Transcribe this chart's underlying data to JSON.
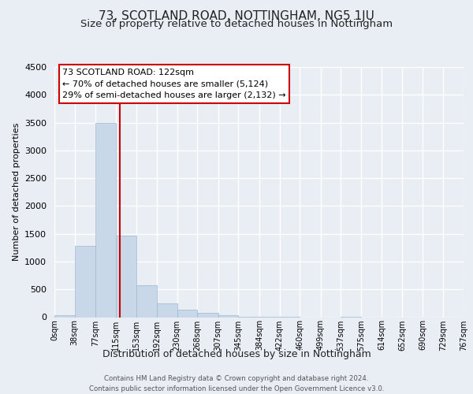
{
  "title": "73, SCOTLAND ROAD, NOTTINGHAM, NG5 1JU",
  "subtitle": "Size of property relative to detached houses in Nottingham",
  "xlabel": "Distribution of detached houses by size in Nottingham",
  "ylabel": "Number of detached properties",
  "bin_edges": [
    0,
    38,
    77,
    115,
    153,
    192,
    230,
    268,
    307,
    345,
    384,
    422,
    460,
    499,
    537,
    575,
    614,
    652,
    690,
    729,
    767
  ],
  "bin_labels": [
    "0sqm",
    "38sqm",
    "77sqm",
    "115sqm",
    "153sqm",
    "192sqm",
    "230sqm",
    "268sqm",
    "307sqm",
    "345sqm",
    "384sqm",
    "422sqm",
    "460sqm",
    "499sqm",
    "537sqm",
    "575sqm",
    "614sqm",
    "652sqm",
    "690sqm",
    "729sqm",
    "767sqm"
  ],
  "bar_heights": [
    30,
    1280,
    3500,
    1470,
    580,
    250,
    130,
    80,
    30,
    10,
    5,
    5,
    0,
    0,
    10,
    0,
    0,
    0,
    0,
    0
  ],
  "bar_color": "#c8d8e8",
  "bar_edge_color": "#a0b8d0",
  "vline_x": 122,
  "vline_color": "#cc0000",
  "ylim": [
    0,
    4500
  ],
  "yticks": [
    0,
    500,
    1000,
    1500,
    2000,
    2500,
    3000,
    3500,
    4000,
    4500
  ],
  "annotation_title": "73 SCOTLAND ROAD: 122sqm",
  "annotation_line1": "← 70% of detached houses are smaller (5,124)",
  "annotation_line2": "29% of semi-detached houses are larger (2,132) →",
  "annotation_box_color": "#ffffff",
  "annotation_box_edge": "#cc0000",
  "footer_line1": "Contains HM Land Registry data © Crown copyright and database right 2024.",
  "footer_line2": "Contains public sector information licensed under the Open Government Licence v3.0.",
  "bg_color": "#e8eef4",
  "plot_bg_color": "#e8eef4",
  "grid_color": "#ffffff",
  "title_fontsize": 11,
  "subtitle_fontsize": 9.5
}
